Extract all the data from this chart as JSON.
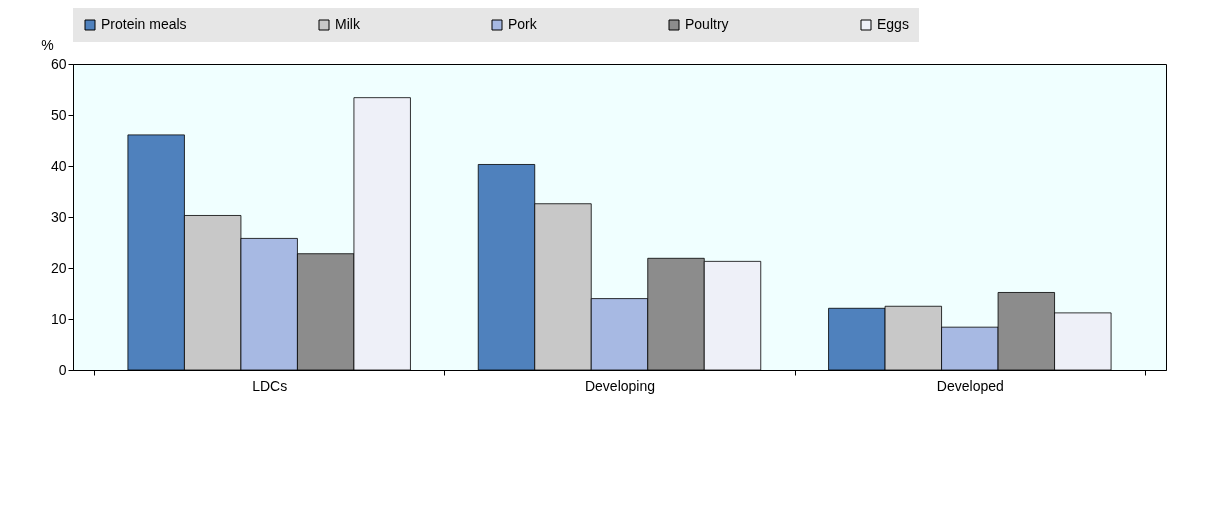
{
  "chart_data": {
    "type": "bar",
    "ylabel": "%",
    "categories": [
      "LDCs",
      "Developing",
      "Developed"
    ],
    "series": [
      {
        "name": "Protein meals",
        "color": "#4f81bd",
        "values": [
          46.1,
          40.3,
          12.1
        ]
      },
      {
        "name": "Milk",
        "color": "#c8c8c8",
        "values": [
          30.3,
          32.6,
          12.5
        ]
      },
      {
        "name": "Pork",
        "color": "#a7b9e3",
        "values": [
          25.8,
          14.0,
          8.4
        ]
      },
      {
        "name": "Poultry",
        "color": "#8c8c8c",
        "values": [
          22.8,
          21.9,
          15.2
        ]
      },
      {
        "name": "Eggs",
        "color": "#eef0f8",
        "values": [
          53.4,
          21.3,
          11.2
        ]
      }
    ],
    "ylim": [
      0,
      60
    ],
    "yticks": [
      0,
      10,
      20,
      30,
      40,
      50,
      60
    ],
    "grid": false,
    "legend": "top"
  }
}
